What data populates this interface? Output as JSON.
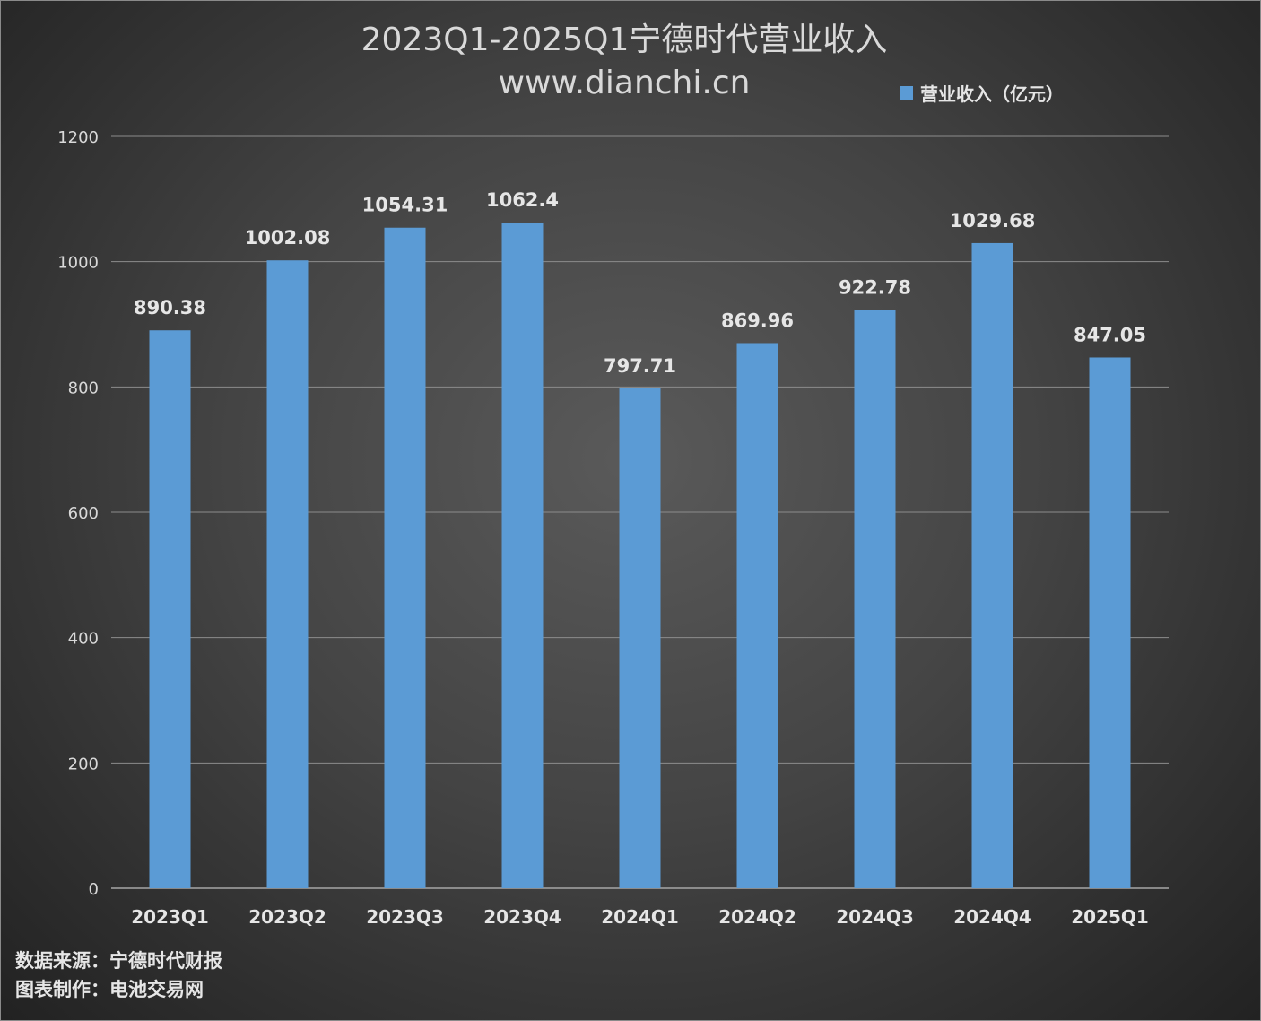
{
  "chart_data": {
    "type": "bar",
    "title": "2023Q1-2025Q1宁德时代营业收入",
    "subtitle": "www.dianchi.cn",
    "categories": [
      "2023Q1",
      "2023Q2",
      "2023Q3",
      "2023Q4",
      "2024Q1",
      "2024Q2",
      "2024Q3",
      "2024Q4",
      "2025Q1"
    ],
    "series": [
      {
        "name": "营业收入（亿元）",
        "values": [
          890.38,
          1002.08,
          1054.31,
          1062.4,
          797.71,
          869.96,
          922.78,
          1029.68,
          847.05
        ],
        "color": "#5b9bd5"
      }
    ],
    "data_labels": [
      "890.38",
      "1002.08",
      "1054.31",
      "1062.4",
      "797.71",
      "869.96",
      "922.78",
      "1029.68",
      "847.05"
    ],
    "ylim": [
      0,
      1200
    ],
    "yticks": [
      0,
      200,
      400,
      600,
      800,
      1000,
      1200
    ],
    "grid": true,
    "legend_position": "top-right"
  },
  "footer": {
    "source": "数据来源：宁德时代财报",
    "maker": "图表制作：电池交易网"
  }
}
